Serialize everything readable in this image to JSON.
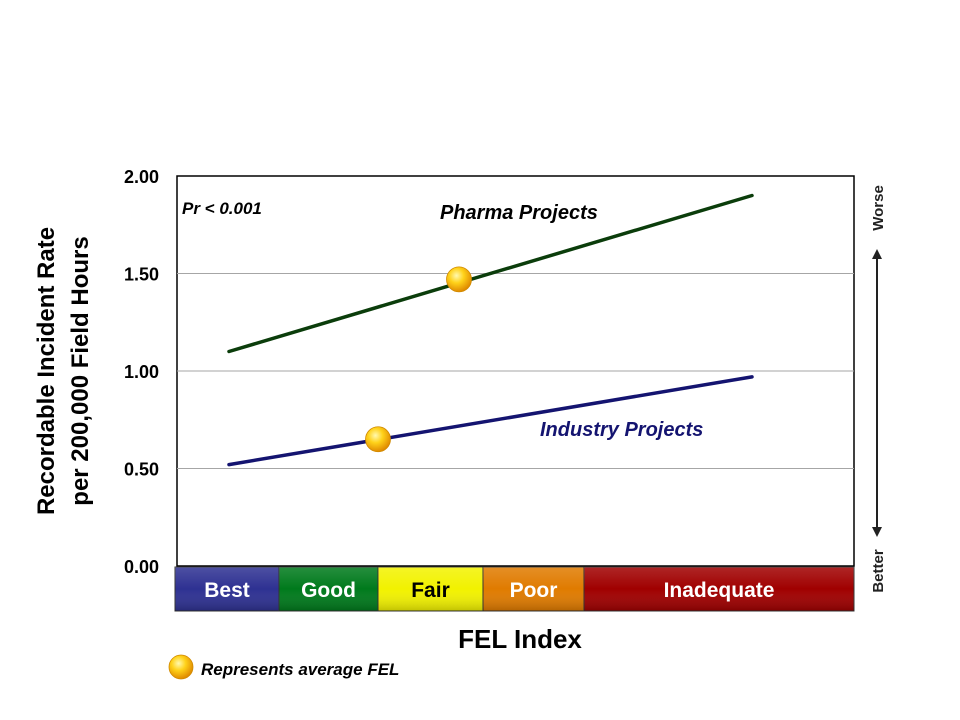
{
  "chart_data": {
    "type": "line",
    "ylabel_line1": "Recordable Incident Rate",
    "ylabel_line2": "per 200,000 Field Hours",
    "xlabel": "FEL Index",
    "ylim": [
      0,
      2
    ],
    "yticks": [
      "0.00",
      "0.50",
      "1.00",
      "1.50",
      "2.00"
    ],
    "grid": true,
    "annotation": "Pr < 0.001",
    "bands": [
      {
        "label": "Best",
        "color": "#2e3192",
        "text_color": "#ffffff"
      },
      {
        "label": "Good",
        "color": "#007a1c",
        "text_color": "#ffffff"
      },
      {
        "label": "Fair",
        "color": "#f2f200",
        "text_color": "#000000"
      },
      {
        "label": "Poor",
        "color": "#e07b00",
        "text_color": "#ffffff"
      },
      {
        "label": "Inadequate",
        "color": "#a00000",
        "text_color": "#ffffff"
      }
    ],
    "series": [
      {
        "name": "Pharma Projects",
        "color": "#0b3d0b",
        "start": 1.1,
        "end": 1.9,
        "average_marker": 1.47
      },
      {
        "name": "Industry Projects",
        "color": "#141470",
        "start": 0.52,
        "end": 0.97,
        "average_marker": 0.65
      }
    ],
    "right_axis": {
      "top_label": "Worse",
      "bottom_label": "Better"
    },
    "legend_note": "Represents average FEL"
  }
}
